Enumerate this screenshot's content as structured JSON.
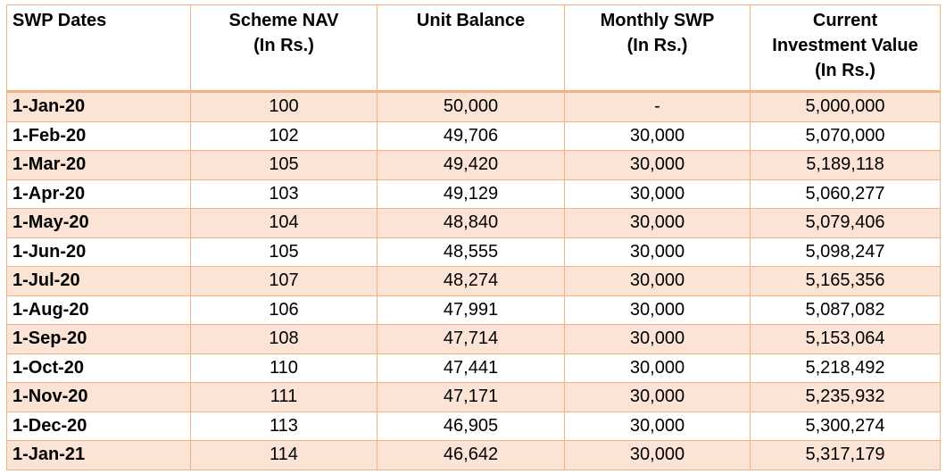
{
  "table": {
    "headers": [
      [
        "SWP Dates"
      ],
      [
        "Scheme NAV",
        "(In Rs.)"
      ],
      [
        "Unit Balance"
      ],
      [
        "Monthly SWP",
        "(In Rs.)"
      ],
      [
        "Current",
        "Investment Value",
        "(In Rs.)"
      ]
    ],
    "rows": [
      [
        "1-Jan-20",
        "100",
        "50,000",
        "-",
        "5,000,000"
      ],
      [
        "1-Feb-20",
        "102",
        "49,706",
        "30,000",
        "5,070,000"
      ],
      [
        "1-Mar-20",
        "105",
        "49,420",
        "30,000",
        "5,189,118"
      ],
      [
        "1-Apr-20",
        "103",
        "49,129",
        "30,000",
        "5,060,277"
      ],
      [
        "1-May-20",
        "104",
        "48,840",
        "30,000",
        "5,079,406"
      ],
      [
        "1-Jun-20",
        "105",
        "48,555",
        "30,000",
        "5,098,247"
      ],
      [
        "1-Jul-20",
        "107",
        "48,274",
        "30,000",
        "5,165,356"
      ],
      [
        "1-Aug-20",
        "106",
        "47,991",
        "30,000",
        "5,087,082"
      ],
      [
        "1-Sep-20",
        "108",
        "47,714",
        "30,000",
        "5,153,064"
      ],
      [
        "1-Oct-20",
        "110",
        "47,441",
        "30,000",
        "5,218,492"
      ],
      [
        "1-Nov-20",
        "111",
        "47,171",
        "30,000",
        "5,235,932"
      ],
      [
        "1-Dec-20",
        "113",
        "46,905",
        "30,000",
        "5,300,274"
      ],
      [
        "1-Jan-21",
        "114",
        "46,642",
        "30,000",
        "5,317,179"
      ]
    ]
  },
  "colors": {
    "border": "#f4b183",
    "shaded_row": "#fbe4d5",
    "text": "#000000"
  }
}
